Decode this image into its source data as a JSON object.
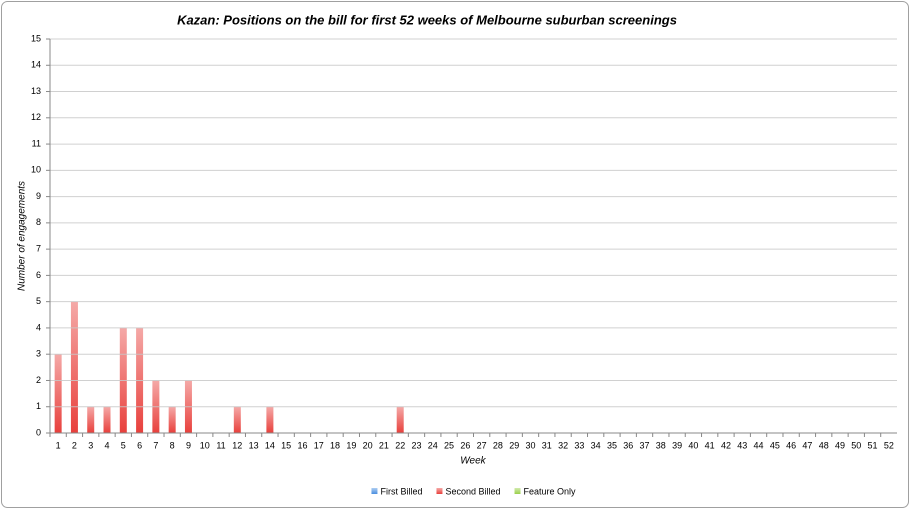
{
  "chart_data": {
    "type": "bar",
    "stacked": true,
    "title": "Kazan: Positions on the bill for first 52 weeks of Melbourne suburban screenings",
    "x_label": "Week",
    "y_label": "Number of engagements",
    "categories": [
      "1",
      "2",
      "3",
      "4",
      "5",
      "6",
      "7",
      "8",
      "9",
      "10",
      "11",
      "12",
      "13",
      "14",
      "15",
      "16",
      "17",
      "18",
      "19",
      "20",
      "21",
      "22",
      "23",
      "24",
      "25",
      "26",
      "27",
      "28",
      "29",
      "30",
      "31",
      "32",
      "33",
      "34",
      "35",
      "36",
      "37",
      "38",
      "39",
      "40",
      "41",
      "42",
      "43",
      "44",
      "45",
      "46",
      "47",
      "48",
      "49",
      "50",
      "51",
      "52"
    ],
    "series": [
      {
        "name": "First Billed",
        "color": "#4a8fe0",
        "values": [
          0,
          0,
          0,
          0,
          0,
          0,
          0,
          0,
          0,
          0,
          0,
          0,
          0,
          0,
          0,
          0,
          0,
          0,
          0,
          0,
          0,
          0,
          0,
          0,
          0,
          0,
          0,
          0,
          0,
          0,
          0,
          0,
          0,
          0,
          0,
          0,
          0,
          0,
          0,
          0,
          0,
          0,
          0,
          0,
          0,
          0,
          0,
          0,
          0,
          0,
          0,
          0
        ]
      },
      {
        "name": "Second Billed",
        "color": "#e8403c",
        "values": [
          3,
          5,
          1,
          1,
          4,
          4,
          2,
          1,
          2,
          0,
          0,
          1,
          0,
          1,
          0,
          0,
          0,
          0,
          0,
          0,
          0,
          1,
          0,
          0,
          0,
          0,
          0,
          0,
          0,
          0,
          0,
          0,
          0,
          0,
          0,
          0,
          0,
          0,
          0,
          0,
          0,
          0,
          0,
          0,
          0,
          0,
          0,
          0,
          0,
          0,
          0,
          0
        ]
      },
      {
        "name": "Feature Only",
        "color": "#9ad04a",
        "values": [
          0,
          0,
          0,
          0,
          0,
          0,
          0,
          0,
          0,
          0,
          0,
          0,
          0,
          0,
          0,
          0,
          0,
          0,
          0,
          0,
          0,
          0,
          0,
          0,
          0,
          0,
          0,
          0,
          0,
          0,
          0,
          0,
          0,
          0,
          0,
          0,
          0,
          0,
          0,
          0,
          0,
          0,
          0,
          0,
          0,
          0,
          0,
          0,
          0,
          0,
          0,
          0
        ]
      }
    ],
    "ylim": [
      0,
      15
    ],
    "yticks": [
      0,
      1,
      2,
      3,
      4,
      5,
      6,
      7,
      8,
      9,
      10,
      11,
      12,
      13,
      14,
      15
    ],
    "grid": true,
    "legend": "bottom"
  }
}
